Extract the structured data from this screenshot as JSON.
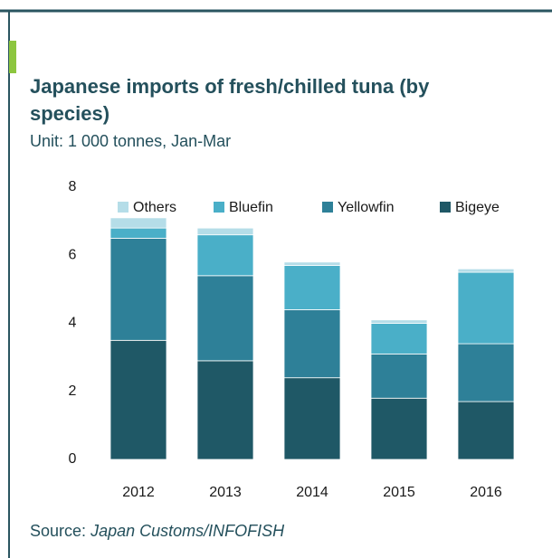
{
  "chart_data": {
    "type": "stacked_bar",
    "title_lines": [
      "Japanese imports of fresh/chilled tuna (by",
      "species)"
    ],
    "subtitle": "Unit: 1 000 tonnes, Jan-Mar",
    "source_label": "Source:",
    "source": "Japan Customs/INFOFISH",
    "categories": [
      "2012",
      "2013",
      "2014",
      "2015",
      "2016"
    ],
    "series": [
      {
        "name": "Others",
        "color": "#b5dde8",
        "values": [
          0.3,
          0.2,
          0.1,
          0.1,
          0.1
        ]
      },
      {
        "name": "Bluefin",
        "color": "#4aafc8",
        "values": [
          0.3,
          1.2,
          1.3,
          0.9,
          2.1
        ]
      },
      {
        "name": "Yellowfin",
        "color": "#2e8098",
        "values": [
          3.0,
          2.5,
          2.0,
          1.3,
          1.7
        ]
      },
      {
        "name": "Bigeye",
        "color": "#1f5866",
        "values": [
          3.5,
          2.9,
          2.4,
          1.8,
          1.7
        ]
      }
    ],
    "ylim": [
      0,
      8
    ],
    "yticks": [
      0,
      2,
      4,
      6,
      8
    ],
    "grid": false
  }
}
